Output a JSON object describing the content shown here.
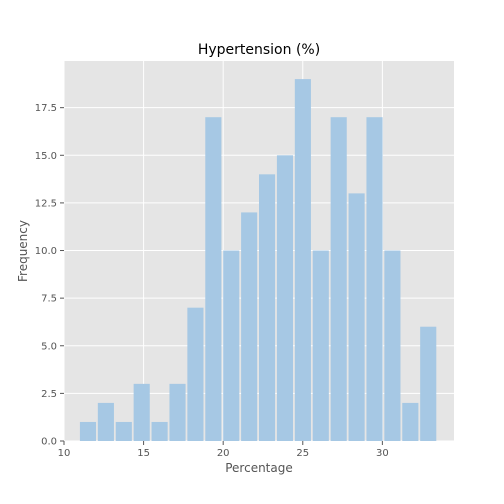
{
  "chart_data": {
    "type": "bar",
    "title": "Hypertension (%)",
    "xlabel": "Percentage",
    "ylabel": "Frequency",
    "xlim": [
      10,
      34.5
    ],
    "ylim": [
      0,
      19.95
    ],
    "xticks": [
      10,
      15,
      20,
      25,
      30
    ],
    "yticks": [
      0.0,
      2.5,
      5.0,
      7.5,
      10.0,
      12.5,
      15.0,
      17.5
    ],
    "bin_width": 1.125,
    "bar_width_fraction": 0.9,
    "bins": [
      {
        "x0": 11.0,
        "value": 1
      },
      {
        "x0": 12.125,
        "value": 2
      },
      {
        "x0": 13.25,
        "value": 1
      },
      {
        "x0": 14.375,
        "value": 3
      },
      {
        "x0": 15.5,
        "value": 1
      },
      {
        "x0": 16.625,
        "value": 3
      },
      {
        "x0": 17.75,
        "value": 7
      },
      {
        "x0": 18.875,
        "value": 17
      },
      {
        "x0": 20.0,
        "value": 10
      },
      {
        "x0": 21.125,
        "value": 12
      },
      {
        "x0": 22.25,
        "value": 14
      },
      {
        "x0": 23.375,
        "value": 15
      },
      {
        "x0": 24.5,
        "value": 19
      },
      {
        "x0": 25.625,
        "value": 10
      },
      {
        "x0": 26.75,
        "value": 17
      },
      {
        "x0": 27.875,
        "value": 13
      },
      {
        "x0": 29.0,
        "value": 17
      },
      {
        "x0": 30.125,
        "value": 10
      },
      {
        "x0": 31.25,
        "value": 2
      },
      {
        "x0": 32.375,
        "value": 6
      }
    ],
    "grid": true,
    "colors": {
      "background": "#e5e5e5",
      "grid": "#ffffff",
      "bar": "#a6c8e4"
    }
  }
}
